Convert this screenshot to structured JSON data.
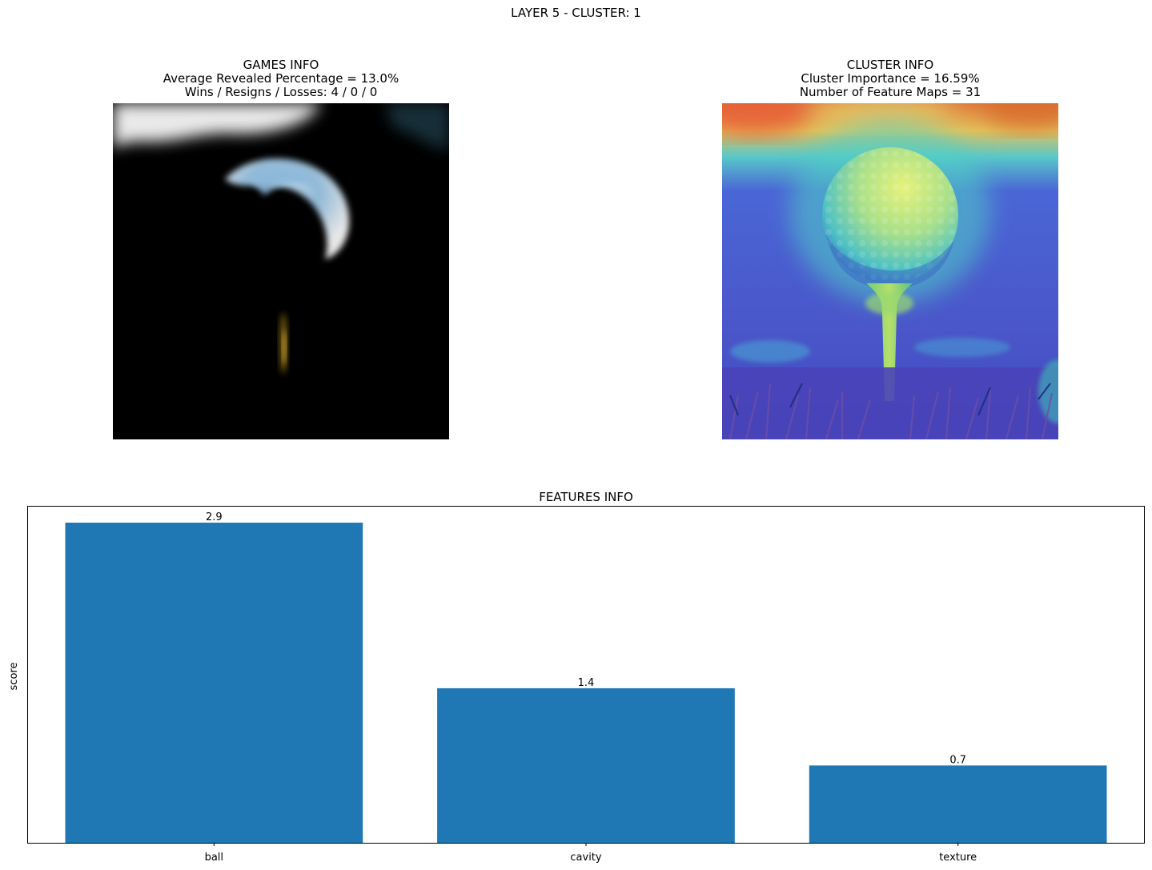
{
  "figure": {
    "title": "LAYER 5 - CLUSTER: 1"
  },
  "games_panel": {
    "lines": [
      "GAMES INFO",
      "Average Revealed Percentage = 13.0%",
      "Wins / Resigns / Losses: 4 / 0 / 0"
    ]
  },
  "cluster_panel": {
    "lines": [
      "CLUSTER INFO",
      "Cluster Importance = 16.59%",
      "Number of Feature Maps = 31"
    ]
  },
  "chart_data": {
    "type": "bar",
    "title": "FEATURES INFO",
    "xlabel": "",
    "ylabel": "score",
    "categories": [
      "ball",
      "cavity",
      "texture"
    ],
    "values": [
      2.9,
      1.4,
      0.7
    ],
    "data_labels": [
      "2.9",
      "1.4",
      "0.7"
    ],
    "ylim": [
      0,
      3.045
    ],
    "y_ticks_visible": false,
    "grid": false,
    "legend": "none",
    "bar_color": "#1f77b4"
  }
}
